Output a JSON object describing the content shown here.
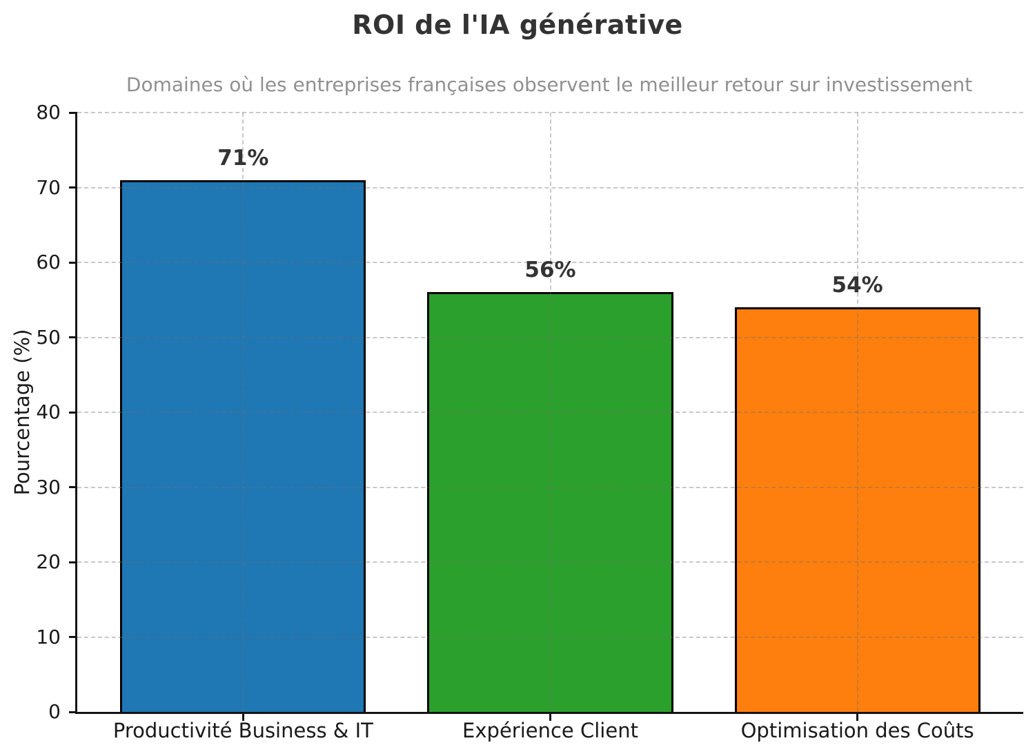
{
  "chart_data": {
    "type": "bar",
    "title": "ROI de l'IA générative",
    "subtitle": "Domaines où les entreprises françaises observent le meilleur retour sur investissement",
    "ylabel": "Pourcentage (%)",
    "xlabel": "",
    "categories": [
      "Productivité Business & IT",
      "Expérience Client",
      "Optimisation des Coûts"
    ],
    "values": [
      71,
      56,
      54
    ],
    "value_labels": [
      "71%",
      "56%",
      "54%"
    ],
    "bar_colors": [
      "#1f77b4",
      "#2ca02c",
      "#ff7f0e"
    ],
    "bar_edge_color": "#000000",
    "ylim": [
      0,
      80
    ],
    "yticks": [
      0,
      10,
      20,
      30,
      40,
      50,
      60,
      70,
      80
    ],
    "grid": "dashed, horizontal and vertical, drawn over bars",
    "legend": "none",
    "bar_width_frac": 0.8,
    "x_margin_frac": 0.05,
    "title_color": "#333333",
    "subtitle_color": "#909090",
    "grid_color": "#cccccc"
  }
}
